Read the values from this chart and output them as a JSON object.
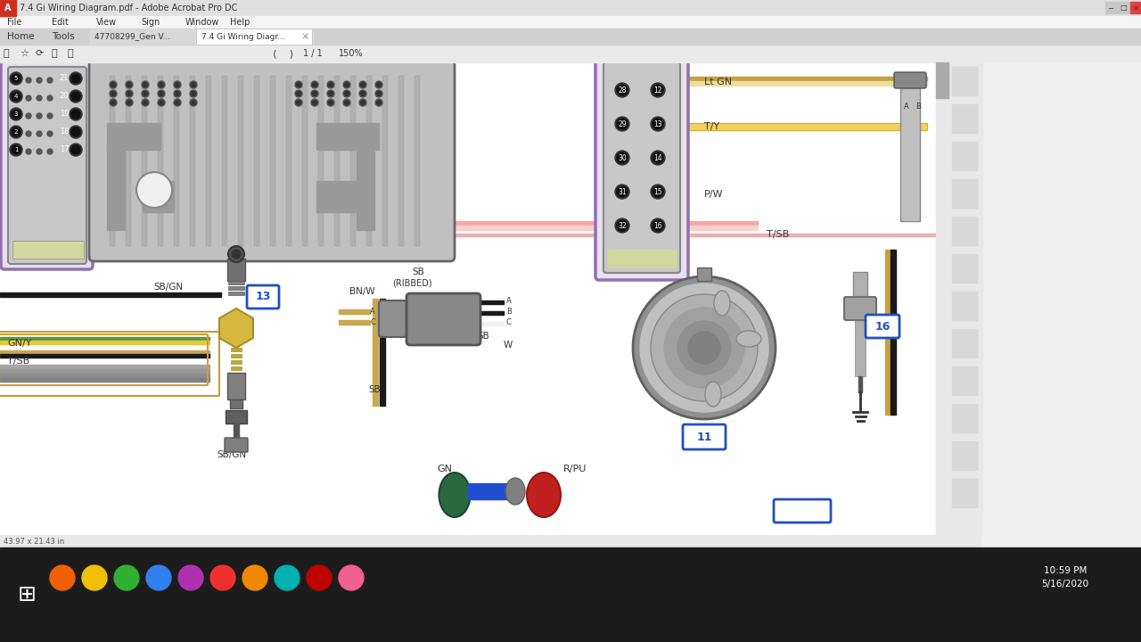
{
  "title_bar": "7.4 Gi Wiring Diagram.pdf - Adobe Acrobat Pro DC",
  "tab1": "47708299_Gen V...",
  "tab2": "7.4 Gi Wiring Diagr...",
  "bg_color": "#f0f0f0",
  "time": "10:59 PM",
  "date": "5/16/2020",
  "status_text": "43.97 x 21.43 in",
  "menu_items": [
    "File",
    "Edit",
    "View",
    "Sign",
    "Window",
    "Help"
  ],
  "title_bg": "#e8e8e8",
  "menubar_bg": "#f0f0f0",
  "tabbar_bg": "#d8d8d8",
  "toolbar_bg": "#e8e8e8",
  "content_bg": "#ffffff",
  "statusbar_bg": "#e8e8e8",
  "taskbar_bg": "#1c1c1c",
  "sidebar_bg": "#e0e0e0",
  "right_panel_bg": "#f2f2f2",
  "scrollbar_bg": "#e0e0e0",
  "scrollbar_thumb": "#a8a8a8",
  "wire_pink": "#f5a8a8",
  "wire_pink2": "#f0c0c0",
  "wire_tan": "#c8a850",
  "wire_yellow": "#e8c840",
  "wire_green": "#5a9a3a",
  "wire_black": "#1a1a1a",
  "wire_white": "#f0f0f0",
  "ecm_gray": "#c0c0c0",
  "ecm_dark": "#a0a0a0",
  "ecm_rib": "#b0b0b0",
  "conn_gray": "#909090",
  "conn_dark": "#707070",
  "conn_light": "#c8c8c8",
  "pin_dark": "#555555",
  "purple_outline": "#9070b0",
  "label_blue": "#2050c0",
  "sensor_yellow": "#d8b840",
  "sensor_gray": "#888888",
  "circ_outer": "#909090",
  "circ_ring1": "#b8b8b8",
  "circ_ring2": "#a0a0a0",
  "circ_center": "#888888",
  "taskbar_icons": [
    "#f06000",
    "#f0c000",
    "#30b030",
    "#3080f0",
    "#b030b0",
    "#f03030",
    "#f08800",
    "#00b0b0",
    "#c00000",
    "#f06090"
  ]
}
